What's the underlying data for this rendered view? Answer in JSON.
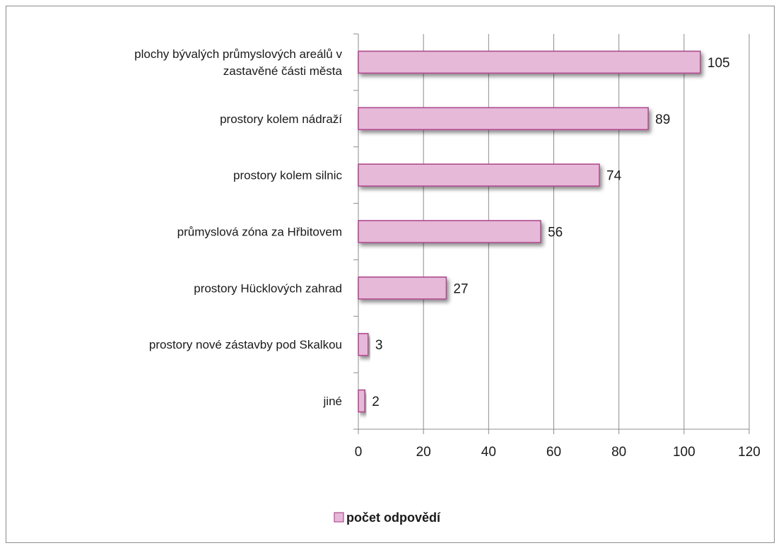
{
  "chart_data": {
    "type": "bar",
    "orientation": "horizontal",
    "categories": [
      "plochy bývalých průmyslových areálů v zastavěné části města",
      "prostory kolem nádraží",
      "prostory kolem silnic",
      "průmyslová zóna za Hřbitovem",
      "prostory Hücklových zahrad",
      "prostory nové zástavby pod Skalkou",
      "jiné"
    ],
    "category_label_lines": [
      [
        "plochy bývalých průmyslových areálů v",
        "zastavěné části města"
      ],
      [
        "prostory kolem nádraží"
      ],
      [
        "prostory kolem silnic"
      ],
      [
        "průmyslová zóna za Hřbitovem"
      ],
      [
        "prostory Hücklových zahrad"
      ],
      [
        "prostory nové zástavby pod Skalkou"
      ],
      [
        "jiné"
      ]
    ],
    "series": [
      {
        "name": "počet odpovědí",
        "values": [
          105,
          89,
          74,
          56,
          27,
          3,
          2
        ]
      }
    ],
    "xlim": [
      0,
      120
    ],
    "xticks": [
      0,
      20,
      40,
      60,
      80,
      100,
      120
    ],
    "grid": "vertical",
    "legend": "bottom",
    "bar_color": "#e6b9d8",
    "bar_border_color": "#b04c8f",
    "data_labels": true
  }
}
